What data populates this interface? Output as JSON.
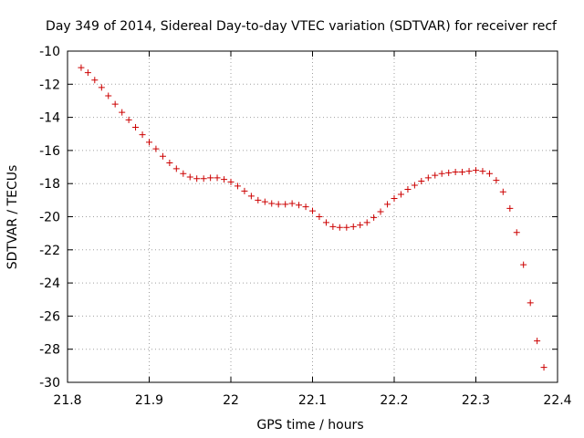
{
  "chart_data": {
    "type": "scatter",
    "title": "Day 349 of 2014, Sidereal Day-to-day VTEC variation (SDTVAR) for receiver recf",
    "xlabel": "GPS time / hours",
    "ylabel": "SDTVAR / TECUs",
    "xlim": [
      21.8,
      22.4
    ],
    "ylim": [
      -30,
      -10
    ],
    "xticks": [
      21.8,
      21.9,
      22.0,
      22.1,
      22.2,
      22.3,
      22.4
    ],
    "xtick_labels": [
      "21.8",
      "21.9",
      "22",
      "22.1",
      "22.2",
      "22.3",
      "22.4"
    ],
    "yticks": [
      -30,
      -28,
      -26,
      -24,
      -22,
      -20,
      -18,
      -16,
      -14,
      -12,
      -10
    ],
    "ytick_labels": [
      "-30",
      "-28",
      "-26",
      "-24",
      "-22",
      "-20",
      "-18",
      "-16",
      "-14",
      "-12",
      "-10"
    ],
    "grid": true,
    "marker": "+",
    "marker_color": "#cc0000",
    "x": [
      21.8167,
      21.825,
      21.8333,
      21.8417,
      21.85,
      21.8583,
      21.8667,
      21.875,
      21.8833,
      21.8917,
      21.9,
      21.9083,
      21.9167,
      21.925,
      21.9333,
      21.9417,
      21.95,
      21.9583,
      21.9667,
      21.975,
      21.9833,
      21.9917,
      22.0,
      22.0083,
      22.0167,
      22.025,
      22.0333,
      22.0417,
      22.05,
      22.0583,
      22.0667,
      22.075,
      22.0833,
      22.0917,
      22.1,
      22.1083,
      22.1167,
      22.125,
      22.1333,
      22.1417,
      22.15,
      22.1583,
      22.1667,
      22.175,
      22.1833,
      22.1917,
      22.2,
      22.2083,
      22.2167,
      22.225,
      22.2333,
      22.2417,
      22.25,
      22.2583,
      22.2667,
      22.275,
      22.2833,
      22.2917,
      22.3,
      22.3083,
      22.3167,
      22.325,
      22.3333,
      22.3417,
      22.35,
      22.3583,
      22.3667,
      22.375,
      22.3833
    ],
    "y": [
      -11.0,
      -11.3,
      -11.75,
      -12.2,
      -12.7,
      -13.2,
      -13.7,
      -14.15,
      -14.6,
      -15.05,
      -15.5,
      -15.9,
      -16.35,
      -16.75,
      -17.1,
      -17.4,
      -17.6,
      -17.7,
      -17.7,
      -17.65,
      -17.65,
      -17.75,
      -17.9,
      -18.15,
      -18.45,
      -18.75,
      -19.0,
      -19.1,
      -19.2,
      -19.25,
      -19.25,
      -19.2,
      -19.3,
      -19.4,
      -19.65,
      -20.0,
      -20.35,
      -20.6,
      -20.65,
      -20.65,
      -20.6,
      -20.5,
      -20.35,
      -20.05,
      -19.7,
      -19.25,
      -18.9,
      -18.65,
      -18.35,
      -18.1,
      -17.85,
      -17.65,
      -17.5,
      -17.4,
      -17.35,
      -17.3,
      -17.3,
      -17.25,
      -17.2,
      -17.25,
      -17.4,
      -17.8,
      -18.5,
      -19.5,
      -20.95,
      -22.9,
      -25.2,
      -27.5,
      -29.1
    ]
  }
}
